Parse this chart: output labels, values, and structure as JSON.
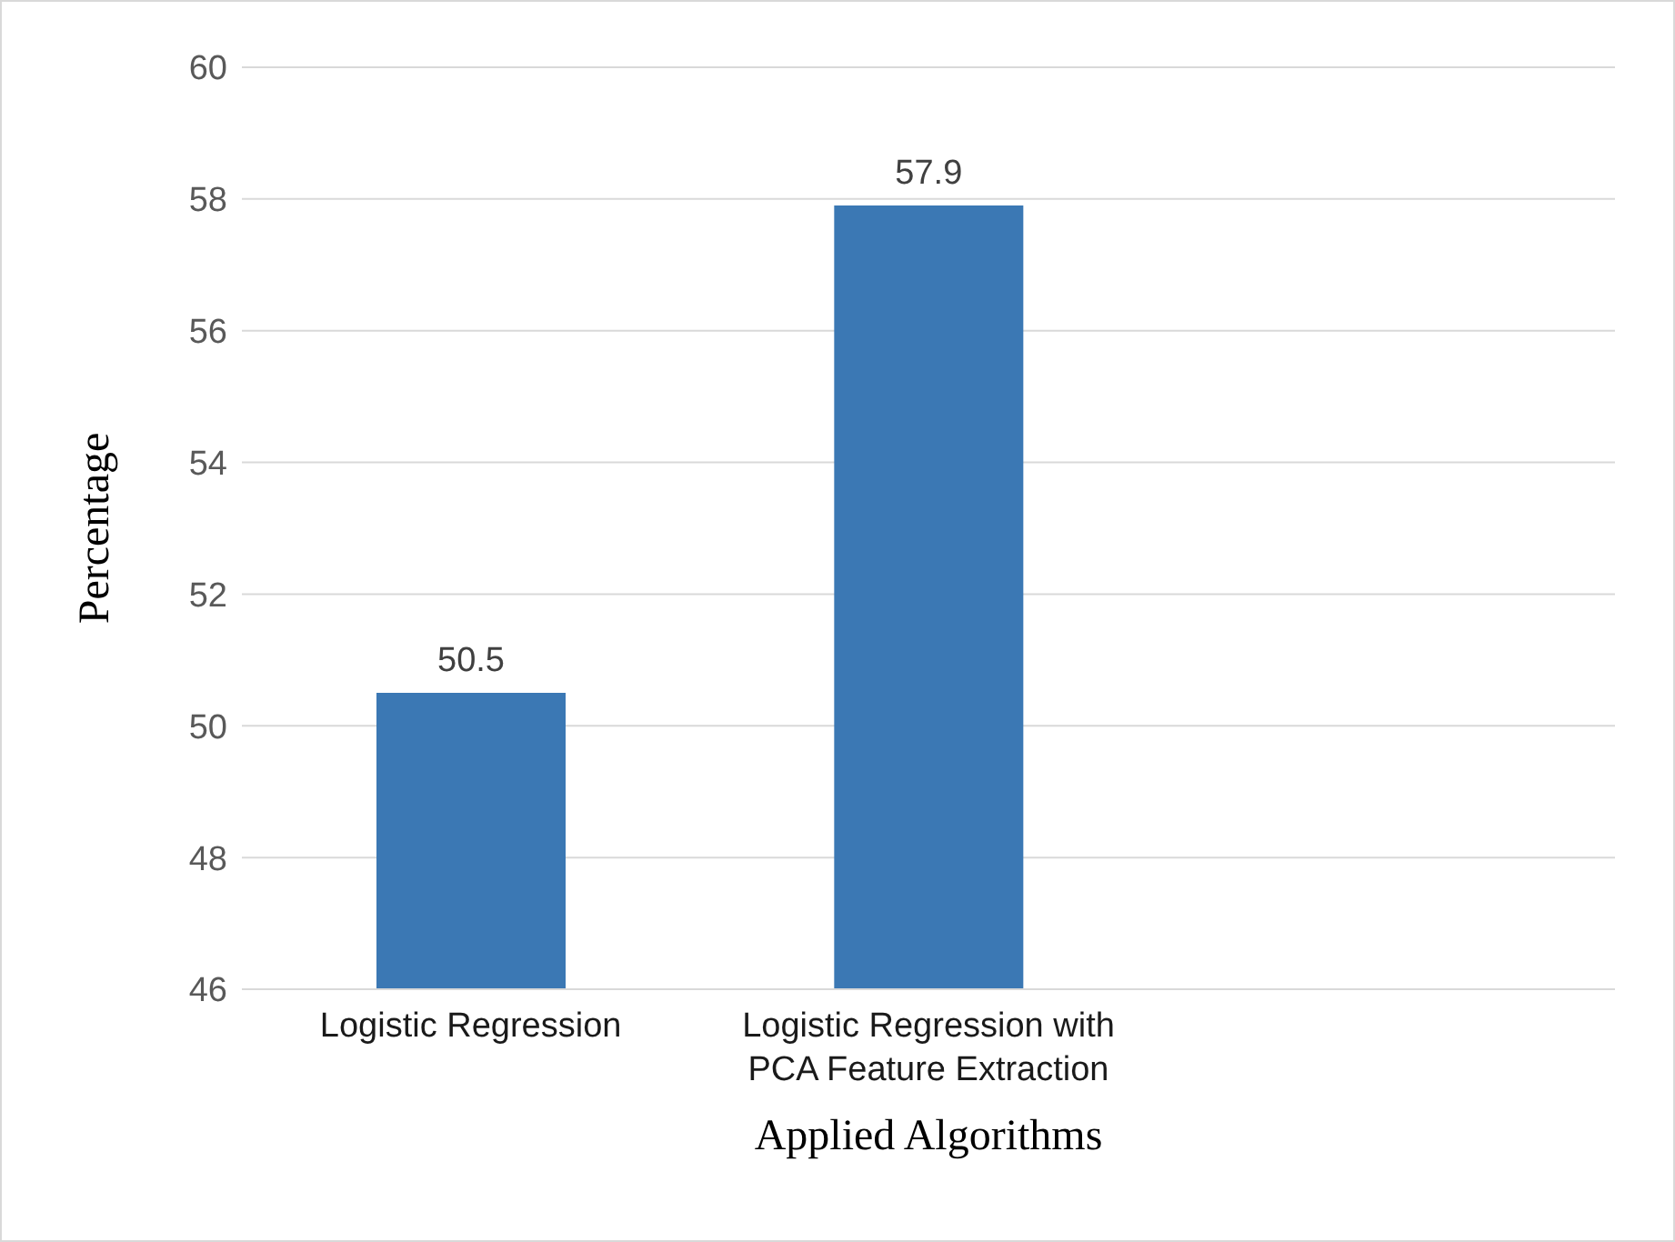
{
  "chart_data": {
    "type": "bar",
    "xlabel": "Applied Algorithms",
    "ylabel": "Percentage",
    "categories": [
      "Logistic Regression",
      "Logistic Regression with PCA Feature Extraction",
      null
    ],
    "values": [
      50.5,
      57.9,
      null
    ],
    "color": "#3b78b4",
    "ylim": [
      46,
      60
    ],
    "yticks": [
      46,
      48,
      50,
      52,
      54,
      56,
      58,
      60
    ],
    "grid": "y",
    "data_labels": true
  }
}
